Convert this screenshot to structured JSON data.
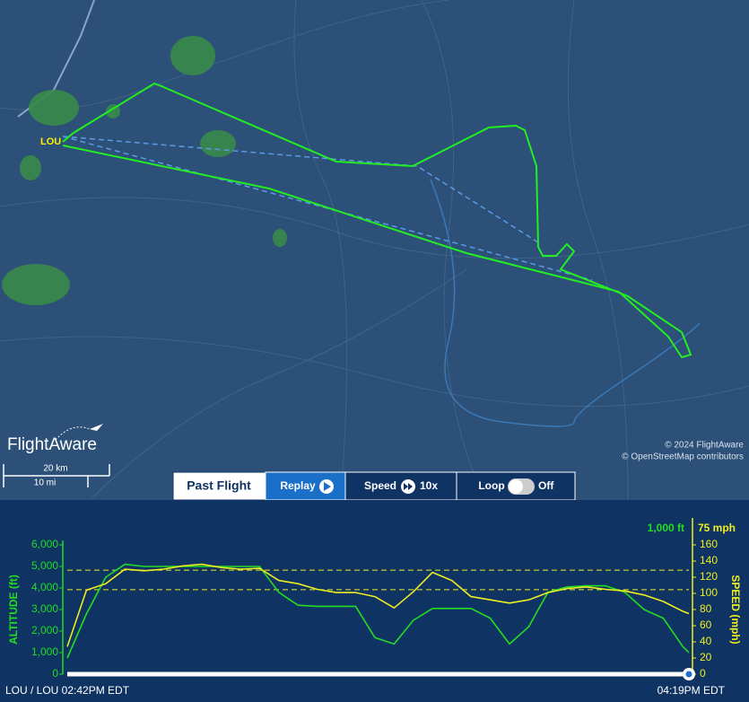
{
  "map": {
    "airport": "LOU",
    "brand": "FlightAware",
    "scale_km": "20 km",
    "scale_mi": "10 mi",
    "copyright": "© 2024 FlightAware",
    "osm": "© OpenStreetMap contributors"
  },
  "controls": {
    "past_flight": "Past Flight",
    "replay": "Replay",
    "speed": "Speed",
    "speed_value": "10x",
    "loop": "Loop",
    "loop_state": "Off"
  },
  "chart_data": {
    "type": "line",
    "altitude_readout": "1,000 ft",
    "speed_readout": "75 mph",
    "y_label": "ALTITUDE (ft)",
    "y2_label": "SPEED (mph)",
    "x_start_label": "LOU / LOU 02:42PM EDT",
    "x_end_label": "04:19PM EDT",
    "x": [
      0,
      3,
      6,
      9,
      12,
      15,
      18,
      21,
      24,
      27,
      30,
      33,
      36,
      39,
      42,
      45,
      48,
      51,
      54,
      57,
      60,
      63,
      66,
      69,
      72,
      75,
      78,
      81,
      84,
      87,
      90,
      93,
      96,
      97
    ],
    "xlim": [
      0,
      97
    ],
    "ylim": [
      0,
      6000
    ],
    "yticks": [
      0,
      {
        "value": 1000,
        "label": "1,000"
      },
      {
        "value": 2000,
        "label": "2,000"
      },
      {
        "value": 3000,
        "label": "3,000"
      },
      {
        "value": 4000,
        "label": "4,000"
      },
      {
        "value": 5000,
        "label": "5,000"
      },
      {
        "value": 6000,
        "label": "6,000"
      }
    ],
    "y2lim": [
      0,
      160
    ],
    "y2ticks": [
      0,
      20,
      40,
      60,
      80,
      100,
      120,
      140,
      160
    ],
    "guide_lines": [
      4830,
      3920
    ],
    "series": [
      {
        "name": "Altitude",
        "color": "#22dd22",
        "values": [
          750,
          2800,
          4500,
          5100,
          5000,
          5000,
          5000,
          5000,
          5000,
          5000,
          5000,
          3800,
          3200,
          3150,
          3150,
          3150,
          1700,
          1400,
          2500,
          3050,
          3050,
          3050,
          2600,
          1400,
          2200,
          3800,
          4050,
          4100,
          4100,
          3800,
          3000,
          2600,
          1300,
          1000
        ]
      },
      {
        "name": "Speed",
        "color": "#eeee22",
        "axis": "y2",
        "values": [
          34,
          104,
          112,
          130,
          128,
          130,
          134,
          136,
          132,
          130,
          131,
          116,
          112,
          105,
          101,
          101,
          96,
          82,
          102,
          126,
          116,
          96,
          92,
          88,
          92,
          101,
          106,
          108,
          105,
          103,
          98,
          90,
          78,
          75
        ]
      }
    ]
  }
}
